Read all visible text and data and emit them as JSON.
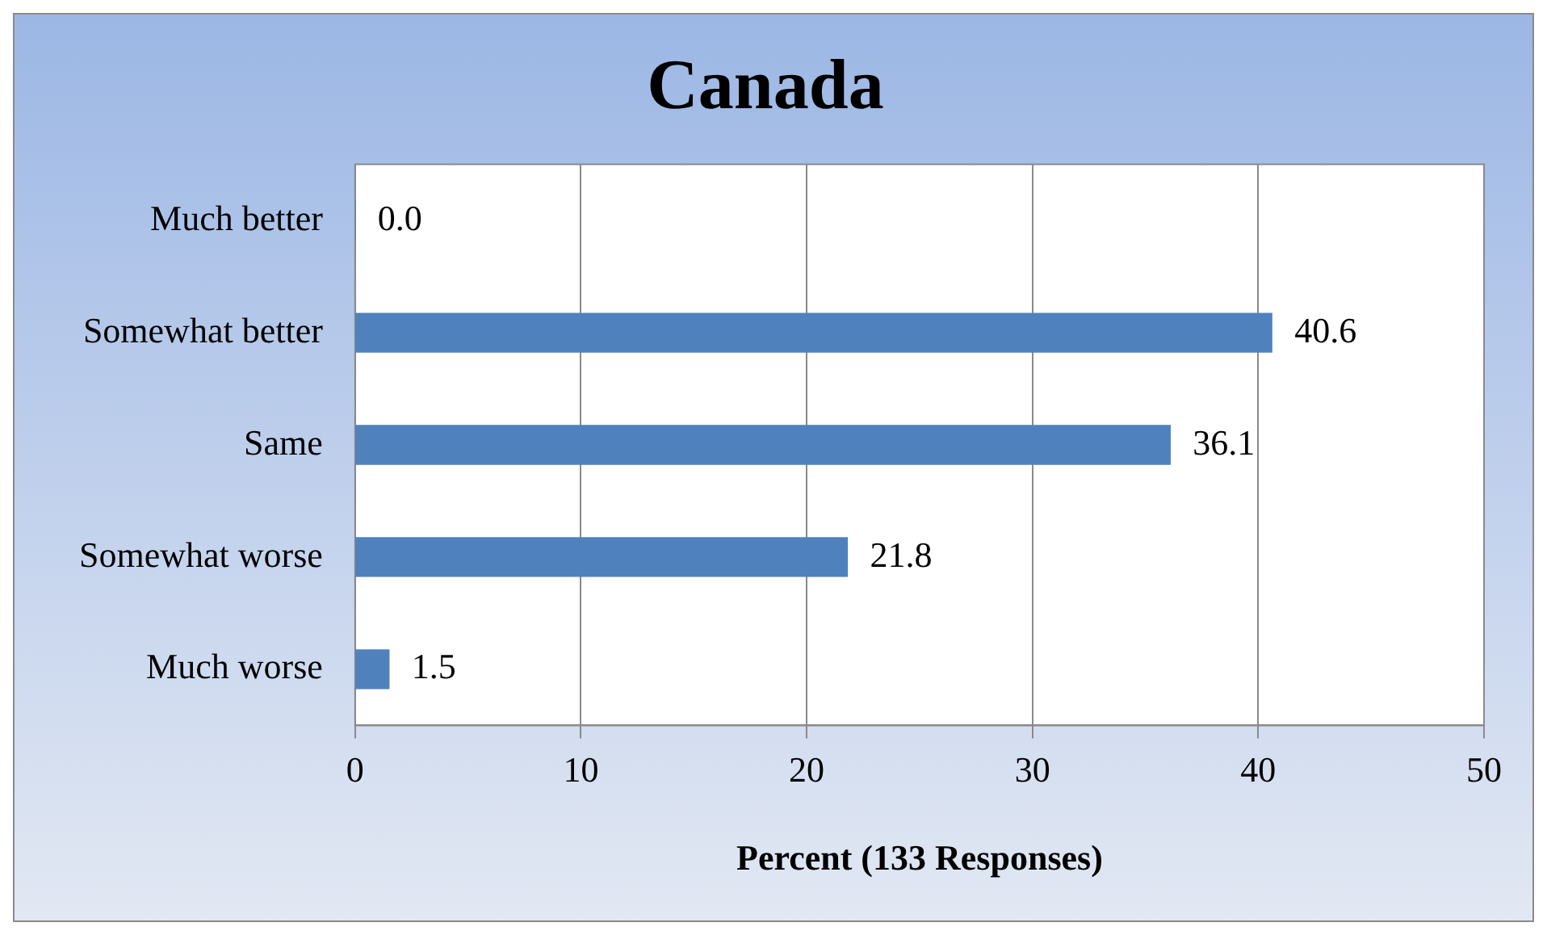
{
  "chart_data": {
    "type": "bar",
    "orientation": "horizontal",
    "title": "Canada",
    "xlabel": "Percent (133 Responses)",
    "categories": [
      "Much better",
      "Somewhat better",
      "Same",
      "Somewhat worse",
      "Much worse"
    ],
    "values": [
      0.0,
      40.6,
      36.1,
      21.8,
      1.5
    ],
    "value_labels": [
      "0.0",
      "40.6",
      "36.1",
      "21.8",
      "1.5"
    ],
    "color": "#4f81bd",
    "xlim": [
      0,
      50
    ],
    "xticks": [
      0,
      10,
      20,
      30,
      40,
      50
    ],
    "grid": "x",
    "legend": false
  }
}
